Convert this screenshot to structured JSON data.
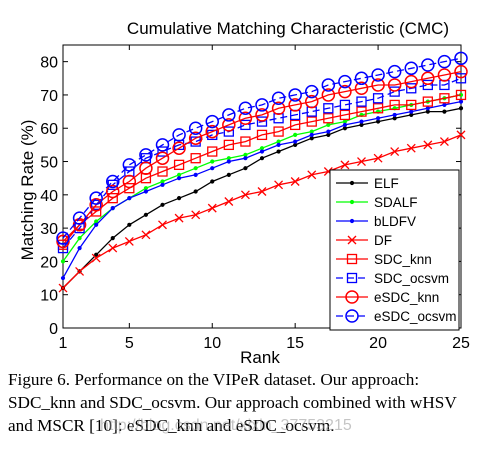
{
  "chart_data": {
    "type": "line",
    "title": "Cumulative Matching Characteristic (CMC)",
    "xlabel": "Rank",
    "ylabel": "Matching Rate (%)",
    "xlim": [
      1,
      25
    ],
    "ylim": [
      0,
      85
    ],
    "xticks": [
      1,
      5,
      10,
      15,
      20,
      25
    ],
    "yticks": [
      0,
      10,
      20,
      30,
      40,
      50,
      60,
      70,
      80
    ],
    "grid": false,
    "legend_position": "bottom-right",
    "x": [
      1,
      2,
      3,
      4,
      5,
      6,
      7,
      8,
      9,
      10,
      11,
      12,
      13,
      14,
      15,
      16,
      17,
      18,
      19,
      20,
      21,
      22,
      23,
      24,
      25
    ],
    "series": [
      {
        "name": "ELF",
        "color": "#000000",
        "linestyle": "solid",
        "marker": "dot",
        "values": [
          12,
          17,
          22,
          27,
          31,
          34,
          37,
          39,
          41,
          44,
          46,
          48,
          51,
          53,
          55,
          57,
          58,
          60,
          61,
          62,
          63,
          64,
          65,
          65,
          66
        ]
      },
      {
        "name": "SDALF",
        "color": "#00ff00",
        "linestyle": "solid",
        "marker": "dot",
        "values": [
          20,
          27,
          32,
          36,
          39,
          42,
          44,
          46,
          48,
          50,
          51,
          52,
          54,
          56,
          58,
          59,
          61,
          62,
          64,
          65,
          66,
          67,
          68,
          69,
          70
        ]
      },
      {
        "name": "bLDFV",
        "color": "#0000ff",
        "linestyle": "solid",
        "marker": "dot",
        "values": [
          15,
          24,
          31,
          36,
          39,
          41,
          43,
          45,
          46,
          48,
          50,
          51,
          53,
          55,
          56,
          58,
          59,
          61,
          62,
          63,
          64,
          65,
          66,
          67,
          68
        ]
      },
      {
        "name": "DF",
        "color": "#ff0000",
        "linestyle": "solid",
        "marker": "x",
        "values": [
          12,
          17,
          21,
          24,
          26,
          28,
          31,
          33,
          34,
          36,
          38,
          40,
          41,
          43,
          44,
          46,
          47,
          49,
          50,
          51,
          53,
          54,
          55,
          56,
          58
        ]
      },
      {
        "name": "SDC_knn",
        "color": "#ff0000",
        "linestyle": "solid",
        "marker": "square",
        "values": [
          25,
          31,
          35,
          39,
          42,
          45,
          47,
          49,
          51,
          53,
          55,
          56,
          58,
          59,
          61,
          62,
          63,
          64,
          65,
          66,
          67,
          67,
          68,
          69,
          70
        ]
      },
      {
        "name": "SDC_ocsvm",
        "color": "#0000ff",
        "linestyle": "dashed",
        "marker": "square",
        "values": [
          24,
          30,
          37,
          43,
          47,
          51,
          53,
          55,
          56,
          58,
          59,
          61,
          62,
          63,
          64,
          65,
          66,
          67,
          68,
          69,
          71,
          72,
          73,
          73,
          75
        ]
      },
      {
        "name": "eSDC_knn",
        "color": "#ff0000",
        "linestyle": "solid",
        "marker": "circle",
        "values": [
          26,
          31,
          37,
          41,
          44,
          48,
          51,
          54,
          57,
          59,
          61,
          63,
          64,
          66,
          67,
          68,
          70,
          71,
          72,
          73,
          73,
          74,
          75,
          76,
          77
        ]
      },
      {
        "name": "eSDC_ocsvm",
        "color": "#0000ff",
        "linestyle": "dashed",
        "marker": "circle",
        "values": [
          27,
          33,
          39,
          44,
          49,
          52,
          55,
          58,
          60,
          62,
          64,
          66,
          67,
          69,
          70,
          71,
          73,
          74,
          75,
          76,
          77,
          78,
          79,
          80,
          81
        ]
      }
    ]
  },
  "caption": {
    "line1": "Figure 6. Performance on the VIPeR dataset.  Our approach:",
    "line2": "SDC_knn and SDC_ocsvm. Our approach combined with wHSV",
    "line3": "and MSCR [10]: eSDC_knn and eSDC_ocsvm."
  },
  "watermark": "http://blog.csdn.net/xixin_37753215"
}
